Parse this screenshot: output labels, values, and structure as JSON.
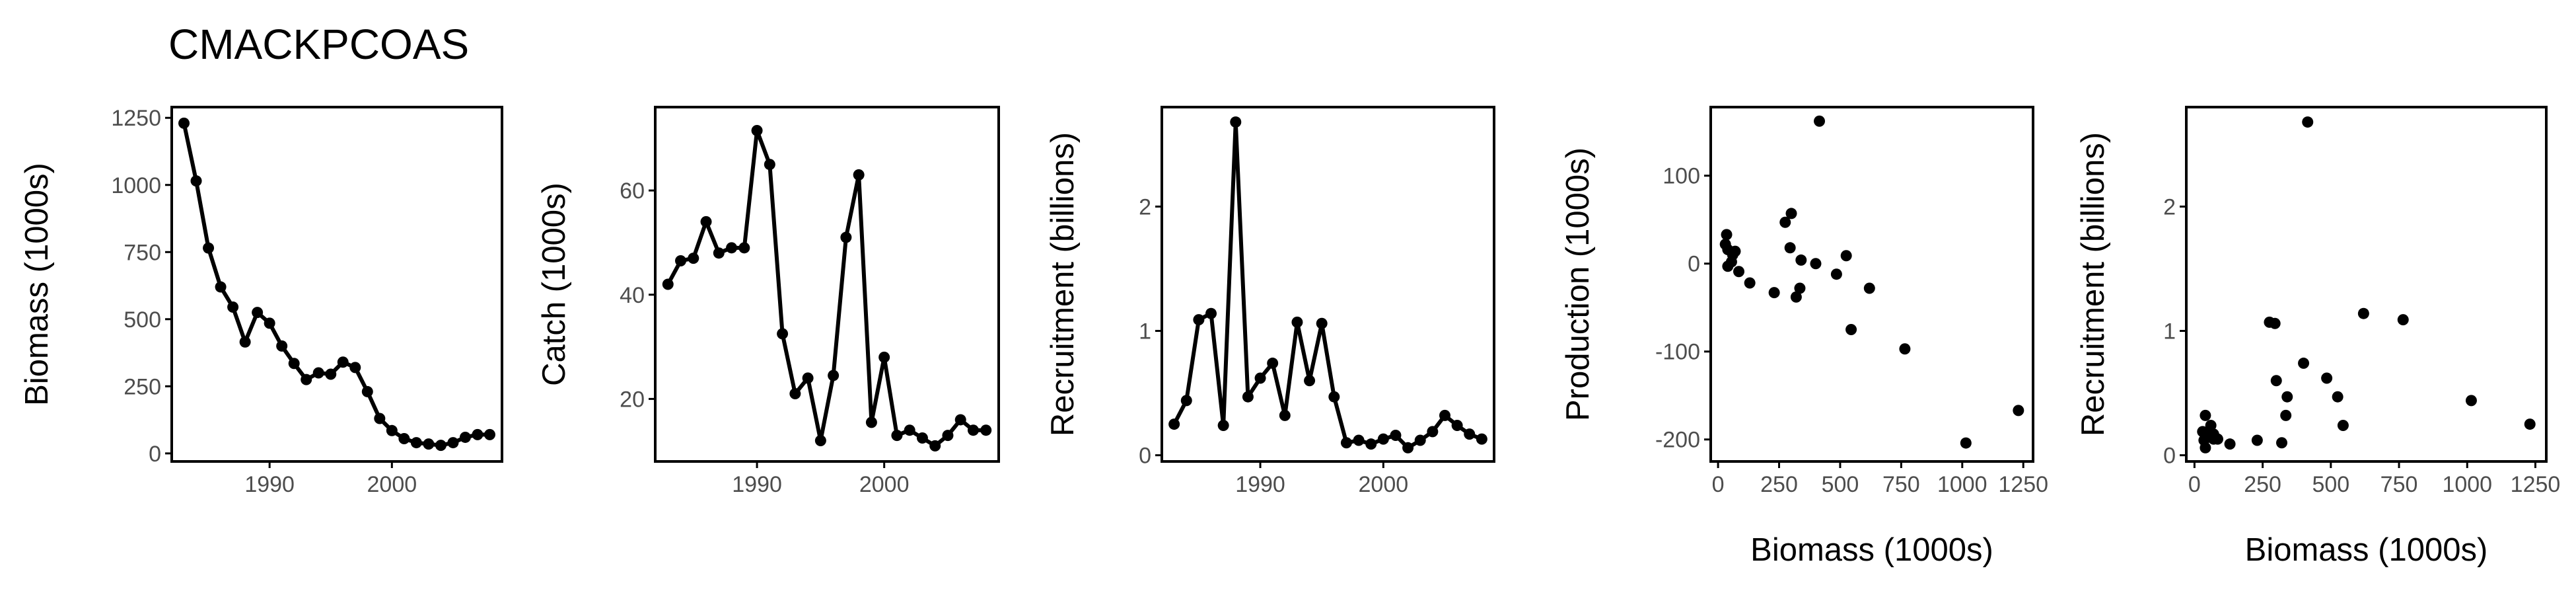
{
  "title": "CMACKPCOAS",
  "colors": {
    "ink": "#000000",
    "tick_text": "#4d4d4d",
    "background": "#ffffff"
  },
  "chart_data": [
    {
      "type": "line",
      "xlabel": "",
      "ylabel": "Biomass (1000s)",
      "xlim": [
        1982,
        2009
      ],
      "ylim": [
        -30,
        1290
      ],
      "xticks": [
        1990,
        2000
      ],
      "yticks": [
        0,
        250,
        500,
        750,
        1000,
        1250
      ],
      "markers": true,
      "x": [
        1983,
        1984,
        1985,
        1986,
        1987,
        1988,
        1989,
        1990,
        1991,
        1992,
        1993,
        1994,
        1995,
        1996,
        1997,
        1998,
        1999,
        2000,
        2001,
        2002,
        2003,
        2004,
        2005,
        2006,
        2007,
        2008
      ],
      "y": [
        1230,
        1015,
        765,
        620,
        545,
        415,
        525,
        485,
        400,
        335,
        275,
        300,
        295,
        340,
        320,
        230,
        130,
        85,
        55,
        40,
        35,
        30,
        40,
        60,
        70,
        70
      ]
    },
    {
      "type": "line",
      "xlabel": "",
      "ylabel": "Catch (1000s)",
      "xlim": [
        1982,
        2009
      ],
      "ylim": [
        8,
        76
      ],
      "xticks": [
        1990,
        2000
      ],
      "yticks": [
        20,
        40,
        60
      ],
      "markers": true,
      "x": [
        1983,
        1984,
        1985,
        1986,
        1987,
        1988,
        1989,
        1990,
        1991,
        1992,
        1993,
        1994,
        1995,
        1996,
        1997,
        1998,
        1999,
        2000,
        2001,
        2002,
        2003,
        2004,
        2005,
        2006,
        2007,
        2008
      ],
      "y": [
        42,
        46.5,
        47,
        54,
        48,
        49,
        49,
        71.5,
        65,
        32.5,
        21,
        24,
        12,
        24.5,
        51,
        63,
        15.5,
        28,
        13,
        14,
        12.5,
        11,
        13,
        16,
        14,
        14
      ]
    },
    {
      "type": "line",
      "xlabel": "",
      "ylabel": "Recruitment (billions)",
      "xlim": [
        1982,
        2009
      ],
      "ylim": [
        -0.05,
        2.8
      ],
      "xticks": [
        1990,
        2000
      ],
      "yticks": [
        0,
        1,
        2
      ],
      "markers": true,
      "x": [
        1983,
        1984,
        1985,
        1986,
        1987,
        1988,
        1989,
        1990,
        1991,
        1992,
        1993,
        1994,
        1995,
        1996,
        1997,
        1998,
        1999,
        2000,
        2001,
        2002,
        2003,
        2004,
        2005,
        2006,
        2007,
        2008
      ],
      "y": [
        0.25,
        0.44,
        1.09,
        1.14,
        0.24,
        2.68,
        0.47,
        0.62,
        0.74,
        0.32,
        1.07,
        0.6,
        1.06,
        0.47,
        0.1,
        0.12,
        0.09,
        0.13,
        0.16,
        0.06,
        0.12,
        0.19,
        0.32,
        0.24,
        0.17,
        0.13
      ]
    },
    {
      "type": "scatter",
      "xlabel": "Biomass (1000s)",
      "ylabel": "Production (1000s)",
      "xlim": [
        -30,
        1290
      ],
      "ylim": [
        -225,
        178
      ],
      "xticks": [
        0,
        250,
        500,
        750,
        1000,
        1250
      ],
      "yticks": [
        -200,
        -100,
        0,
        100
      ],
      "x": [
        1230,
        1015,
        765,
        620,
        545,
        415,
        525,
        485,
        400,
        335,
        275,
        300,
        295,
        340,
        320,
        230,
        130,
        85,
        55,
        40,
        35,
        30,
        40,
        60,
        70
      ],
      "y": [
        -167,
        -204,
        -97,
        -28,
        -75,
        162,
        9,
        -12,
        0,
        -28,
        47,
        57,
        18,
        4,
        -38,
        -33,
        -22,
        -9,
        2,
        16,
        33,
        22,
        -3,
        10,
        14
      ]
    },
    {
      "type": "scatter",
      "xlabel": "Biomass (1000s)",
      "ylabel": "Recruitment (billions)",
      "xlim": [
        -30,
        1290
      ],
      "ylim": [
        -0.05,
        2.8
      ],
      "xticks": [
        0,
        250,
        500,
        750,
        1000,
        1250
      ],
      "yticks": [
        0,
        1,
        2
      ],
      "x": [
        1230,
        1015,
        765,
        620,
        545,
        415,
        525,
        485,
        400,
        335,
        275,
        300,
        295,
        340,
        320,
        230,
        130,
        85,
        55,
        40,
        35,
        30,
        40,
        60,
        70,
        70
      ],
      "y": [
        0.25,
        0.44,
        1.09,
        1.14,
        0.24,
        2.68,
        0.47,
        0.62,
        0.74,
        0.32,
        1.07,
        0.6,
        1.06,
        0.47,
        0.1,
        0.12,
        0.09,
        0.13,
        0.16,
        0.06,
        0.12,
        0.19,
        0.32,
        0.24,
        0.17,
        0.13
      ]
    }
  ]
}
